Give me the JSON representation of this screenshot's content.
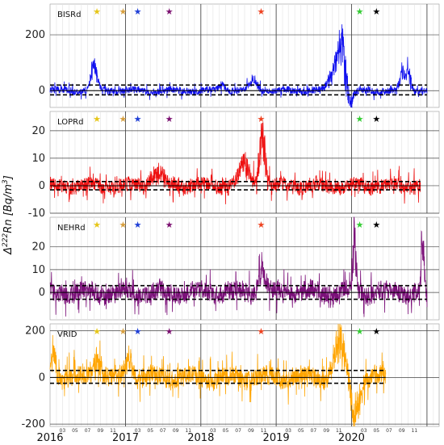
{
  "chart_data": {
    "type": "line",
    "ylabel_parts": [
      "Δ",
      "222",
      "Rn [Bq/m",
      "3",
      "]"
    ],
    "x_years": [
      "2016",
      "2017",
      "2018",
      "2019",
      "2020"
    ],
    "x_months": [
      "03",
      "05",
      "07",
      "09",
      "11"
    ],
    "grid": true,
    "event_stars": [
      {
        "date": "2016-08-15",
        "color": "#e6c619"
      },
      {
        "date": "2016-12-20",
        "color": "#d8a040"
      },
      {
        "date": "2017-03-01",
        "color": "#1f3fd6"
      },
      {
        "date": "2017-08-01",
        "color": "#7b1070"
      },
      {
        "date": "2018-10-20",
        "color": "#ee4422"
      },
      {
        "date": "2020-02-10",
        "color": "#33cc33"
      },
      {
        "date": "2020-05-01",
        "color": "#000000"
      }
    ],
    "panels": [
      {
        "name": "BISRd",
        "color": "#1010ee",
        "ylim": [
          -60,
          310
        ],
        "yticks": [
          0,
          200
        ],
        "x_start": "2016-01-01",
        "x_end": "2021-01-01",
        "band": [
          20,
          -15
        ],
        "noise": 12,
        "features": [
          {
            "center": "2016-08-01",
            "width": 15,
            "amp": 80
          },
          {
            "center": "2018-04-15",
            "width": 15,
            "amp": 25
          },
          {
            "center": "2018-09-15",
            "width": 20,
            "amp": 30
          },
          {
            "center": "2019-10-10",
            "width": 25,
            "amp": 60
          },
          {
            "center": "2019-11-15",
            "width": 18,
            "amp": 180
          },
          {
            "center": "2019-12-15",
            "width": 20,
            "amp": -60
          },
          {
            "center": "2020-09-05",
            "width": 12,
            "amp": 70
          },
          {
            "center": "2020-10-05",
            "width": 12,
            "amp": 60
          }
        ]
      },
      {
        "name": "LOPRd",
        "color": "#ee1111",
        "ylim": [
          -10,
          27
        ],
        "yticks": [
          -10,
          0,
          10,
          20
        ],
        "x_start": "2016-01-01",
        "x_end": "2020-11-30",
        "band": [
          1.5,
          -1.5
        ],
        "noise": 2.5,
        "features": [
          {
            "center": "2018-10-25",
            "width": 15,
            "amp": 18
          },
          {
            "center": "2018-08-01",
            "width": 25,
            "amp": 8
          },
          {
            "center": "2017-06-01",
            "width": 30,
            "amp": 5
          }
        ]
      },
      {
        "name": "NEHRd",
        "color": "#7b1079",
        "ylim": [
          -12,
          33
        ],
        "yticks": [
          0,
          10,
          20
        ],
        "x_start": "2016-01-01",
        "x_end": "2021-01-01",
        "band": [
          3,
          -3
        ],
        "noise": 4,
        "features": [
          {
            "center": "2018-10-25",
            "width": 15,
            "amp": 12
          },
          {
            "center": "2020-01-15",
            "width": 8,
            "amp": 25
          },
          {
            "center": "2020-12-10",
            "width": 6,
            "amp": 28
          }
        ]
      },
      {
        "name": "VRID",
        "color": "#ffa500",
        "ylim": [
          -210,
          230
        ],
        "yticks": [
          -200,
          0,
          200
        ],
        "x_start": "2016-01-01",
        "x_end": "2020-06-15",
        "band": [
          30,
          -25
        ],
        "noise": 40,
        "features": [
          {
            "center": "2016-01-15",
            "width": 12,
            "amp": 120
          },
          {
            "center": "2016-08-15",
            "width": 20,
            "amp": 80
          },
          {
            "center": "2017-01-20",
            "width": 18,
            "amp": 90
          },
          {
            "center": "2019-11-05",
            "width": 25,
            "amp": 150
          },
          {
            "center": "2020-01-20",
            "width": 20,
            "amp": -150
          }
        ]
      }
    ]
  }
}
